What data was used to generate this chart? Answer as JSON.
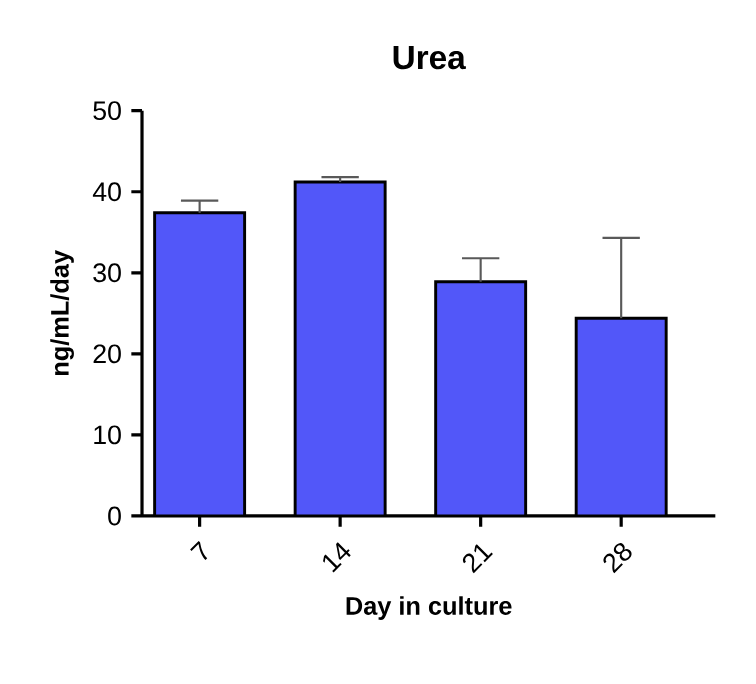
{
  "chart_data": {
    "type": "bar",
    "title": "Urea",
    "xlabel": "Day in culture",
    "ylabel": "ng/mL/day",
    "categories": [
      "7",
      "14",
      "21",
      "28"
    ],
    "values": [
      37.4,
      41.2,
      28.9,
      24.4
    ],
    "errors": [
      [
        37.4,
        38.9
      ],
      [
        41.2,
        41.8
      ],
      [
        28.9,
        31.8
      ],
      [
        24.4,
        34.3
      ]
    ],
    "color": "#5257f9",
    "ylim": [
      0,
      50
    ],
    "yticks": [
      0,
      10,
      20,
      30,
      40,
      50
    ],
    "grid": false
  }
}
